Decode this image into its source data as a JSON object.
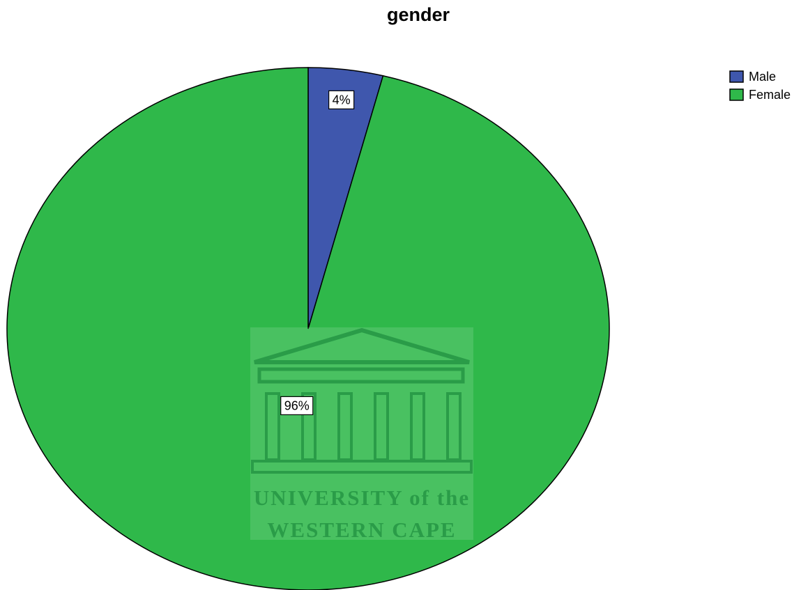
{
  "chart_data": {
    "type": "pie",
    "title": "gender",
    "categories": [
      "Male",
      "Female"
    ],
    "values": [
      4,
      96
    ],
    "value_labels": [
      "4%",
      "96%"
    ],
    "colors": [
      "#3f57ad",
      "#2fb84a"
    ],
    "legend": "top-right",
    "watermark": [
      "UNIVERSITY of the",
      "WESTERN CAPE"
    ]
  }
}
